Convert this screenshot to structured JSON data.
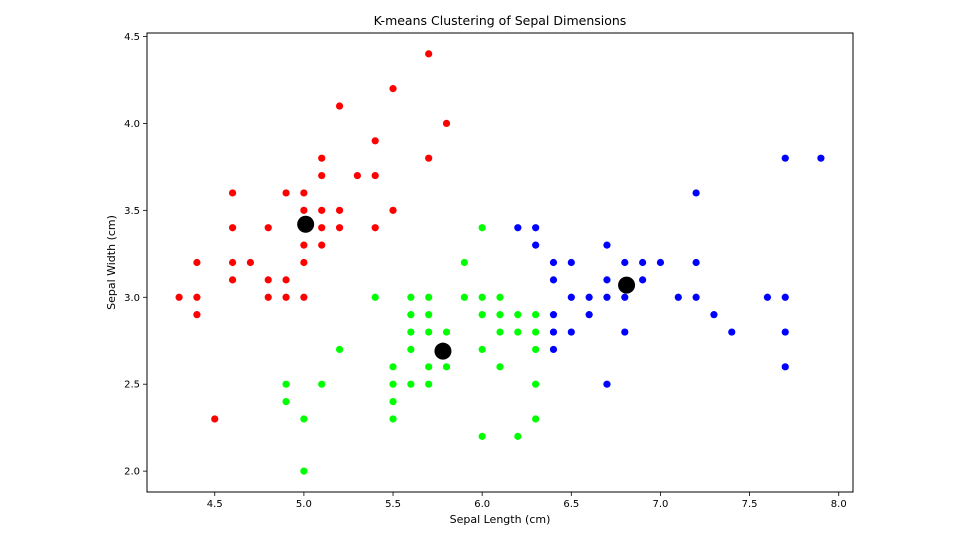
{
  "chart_data": {
    "type": "scatter",
    "title": "K-means Clustering of Sepal Dimensions",
    "xlabel": "Sepal Length (cm)",
    "ylabel": "Sepal Width (cm)",
    "xlim": [
      4.12,
      8.08
    ],
    "ylim": [
      1.88,
      4.52
    ],
    "xticks": [
      4.5,
      5.0,
      5.5,
      6.0,
      6.5,
      7.0,
      7.5,
      8.0
    ],
    "xtick_labels": [
      "4.5",
      "5.0",
      "5.5",
      "6.0",
      "6.5",
      "7.0",
      "7.5",
      "8.0"
    ],
    "yticks": [
      2.0,
      2.5,
      3.0,
      3.5,
      4.0,
      4.5
    ],
    "ytick_labels": [
      "2.0",
      "2.5",
      "3.0",
      "3.5",
      "4.0",
      "4.5"
    ],
    "grid": false,
    "series": [
      {
        "color": "#ff0000",
        "points": [
          [
            4.3,
            3.0
          ],
          [
            4.4,
            3.2
          ],
          [
            4.4,
            3.0
          ],
          [
            4.4,
            2.9
          ],
          [
            4.5,
            2.3
          ],
          [
            4.6,
            3.6
          ],
          [
            4.6,
            3.4
          ],
          [
            4.6,
            3.2
          ],
          [
            4.6,
            3.1
          ],
          [
            4.7,
            3.2
          ],
          [
            4.8,
            3.4
          ],
          [
            4.8,
            3.1
          ],
          [
            4.8,
            3.0
          ],
          [
            4.9,
            3.6
          ],
          [
            4.9,
            3.1
          ],
          [
            4.9,
            3.0
          ],
          [
            5.0,
            3.6
          ],
          [
            5.0,
            3.5
          ],
          [
            5.0,
            3.4
          ],
          [
            5.0,
            3.3
          ],
          [
            5.0,
            3.2
          ],
          [
            5.0,
            3.0
          ],
          [
            5.1,
            3.8
          ],
          [
            5.1,
            3.7
          ],
          [
            5.1,
            3.5
          ],
          [
            5.1,
            3.4
          ],
          [
            5.1,
            3.3
          ],
          [
            5.2,
            4.1
          ],
          [
            5.2,
            3.5
          ],
          [
            5.2,
            3.4
          ],
          [
            5.3,
            3.7
          ],
          [
            5.4,
            3.9
          ],
          [
            5.4,
            3.7
          ],
          [
            5.4,
            3.4
          ],
          [
            5.5,
            4.2
          ],
          [
            5.5,
            3.5
          ],
          [
            5.7,
            4.4
          ],
          [
            5.7,
            3.8
          ],
          [
            5.8,
            4.0
          ]
        ]
      },
      {
        "color": "#00ff00",
        "points": [
          [
            4.9,
            2.5
          ],
          [
            4.9,
            2.4
          ],
          [
            5.0,
            2.3
          ],
          [
            5.0,
            2.0
          ],
          [
            5.1,
            2.5
          ],
          [
            5.2,
            2.7
          ],
          [
            5.4,
            3.0
          ],
          [
            5.5,
            2.6
          ],
          [
            5.5,
            2.5
          ],
          [
            5.5,
            2.4
          ],
          [
            5.5,
            2.3
          ],
          [
            5.6,
            3.0
          ],
          [
            5.6,
            2.9
          ],
          [
            5.6,
            2.8
          ],
          [
            5.6,
            2.7
          ],
          [
            5.6,
            2.5
          ],
          [
            5.7,
            3.0
          ],
          [
            5.7,
            2.9
          ],
          [
            5.7,
            2.8
          ],
          [
            5.7,
            2.6
          ],
          [
            5.7,
            2.5
          ],
          [
            5.8,
            2.8
          ],
          [
            5.8,
            2.7
          ],
          [
            5.8,
            2.6
          ],
          [
            5.9,
            3.2
          ],
          [
            5.9,
            3.0
          ],
          [
            6.0,
            3.4
          ],
          [
            6.0,
            3.0
          ],
          [
            6.0,
            2.9
          ],
          [
            6.0,
            2.7
          ],
          [
            6.0,
            2.2
          ],
          [
            6.1,
            3.0
          ],
          [
            6.1,
            2.9
          ],
          [
            6.1,
            2.8
          ],
          [
            6.1,
            2.6
          ],
          [
            6.2,
            2.9
          ],
          [
            6.2,
            2.8
          ],
          [
            6.2,
            2.2
          ],
          [
            6.3,
            2.9
          ],
          [
            6.3,
            2.8
          ],
          [
            6.3,
            2.7
          ],
          [
            6.3,
            2.5
          ],
          [
            6.3,
            2.3
          ]
        ]
      },
      {
        "color": "#0000ff",
        "points": [
          [
            6.2,
            3.4
          ],
          [
            6.3,
            3.4
          ],
          [
            6.3,
            3.3
          ],
          [
            6.4,
            3.2
          ],
          [
            6.4,
            3.1
          ],
          [
            6.4,
            2.9
          ],
          [
            6.4,
            2.8
          ],
          [
            6.4,
            2.7
          ],
          [
            6.5,
            3.2
          ],
          [
            6.5,
            3.0
          ],
          [
            6.5,
            2.8
          ],
          [
            6.6,
            3.0
          ],
          [
            6.6,
            2.9
          ],
          [
            6.7,
            3.3
          ],
          [
            6.7,
            3.1
          ],
          [
            6.7,
            3.0
          ],
          [
            6.7,
            2.5
          ],
          [
            6.8,
            3.2
          ],
          [
            6.8,
            3.0
          ],
          [
            6.8,
            2.8
          ],
          [
            6.9,
            3.2
          ],
          [
            6.9,
            3.1
          ],
          [
            7.0,
            3.2
          ],
          [
            7.1,
            3.0
          ],
          [
            7.2,
            3.6
          ],
          [
            7.2,
            3.2
          ],
          [
            7.2,
            3.0
          ],
          [
            7.3,
            2.9
          ],
          [
            7.4,
            2.8
          ],
          [
            7.6,
            3.0
          ],
          [
            7.7,
            3.8
          ],
          [
            7.7,
            3.0
          ],
          [
            7.7,
            2.8
          ],
          [
            7.7,
            2.6
          ],
          [
            7.9,
            3.8
          ]
        ]
      },
      {
        "color": "#000000",
        "marker": "large",
        "points": [
          [
            5.01,
            3.42
          ],
          [
            5.78,
            2.69
          ],
          [
            6.81,
            3.07
          ]
        ]
      }
    ]
  }
}
